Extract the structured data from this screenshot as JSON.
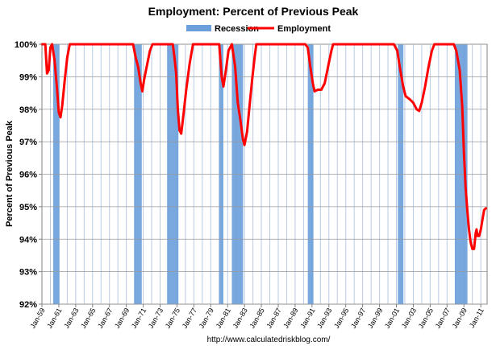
{
  "chart_data": {
    "type": "line",
    "title": "Employment: Percent of Previous Peak",
    "ylabel": "Percent of Previous Peak",
    "xlabel": "",
    "source": "http://www.calculatedriskblog.com/",
    "ylim": [
      92,
      100
    ],
    "xlim": [
      1959.0,
      2011.75
    ],
    "grid": true,
    "legend_position": "top-center",
    "y_ticks": [
      {
        "v": 92,
        "label": "92%"
      },
      {
        "v": 93,
        "label": "93%"
      },
      {
        "v": 94,
        "label": "94%"
      },
      {
        "v": 95,
        "label": "95%"
      },
      {
        "v": 96,
        "label": "96%"
      },
      {
        "v": 97,
        "label": "97%"
      },
      {
        "v": 98,
        "label": "98%"
      },
      {
        "v": 99,
        "label": "99%"
      },
      {
        "v": 100,
        "label": "100%"
      }
    ],
    "x_ticks": [
      "Jan-59",
      "Jan-61",
      "Jan-63",
      "Jan-65",
      "Jan-67",
      "Jan-69",
      "Jan-71",
      "Jan-73",
      "Jan-75",
      "Jan-77",
      "Jan-79",
      "Jan-81",
      "Jan-83",
      "Jan-85",
      "Jan-87",
      "Jan-89",
      "Jan-91",
      "Jan-93",
      "Jan-95",
      "Jan-97",
      "Jan-99",
      "Jan-01",
      "Jan-03",
      "Jan-05",
      "Jan-07",
      "Jan-09",
      "Jan-11"
    ],
    "legend": [
      {
        "name": "Recession",
        "color": "#6a9fdc"
      },
      {
        "name": "Employment",
        "color": "#ff0000"
      }
    ],
    "recessions": [
      [
        1960.33,
        1961.08
      ],
      [
        1969.92,
        1970.83
      ],
      [
        1973.83,
        1975.17
      ],
      [
        1980.0,
        1980.5
      ],
      [
        1981.5,
        1982.83
      ],
      [
        1990.5,
        1991.17
      ],
      [
        2001.17,
        2001.83
      ],
      [
        2007.92,
        2009.42
      ]
    ],
    "series": [
      {
        "name": "Employment",
        "color": "#ff0000",
        "points": [
          [
            1959.0,
            100
          ],
          [
            1959.4,
            100
          ],
          [
            1959.6,
            99.1
          ],
          [
            1959.8,
            99.2
          ],
          [
            1960.0,
            99.9
          ],
          [
            1960.2,
            100
          ],
          [
            1960.5,
            99.5
          ],
          [
            1960.8,
            98.6
          ],
          [
            1961.0,
            97.9
          ],
          [
            1961.2,
            97.75
          ],
          [
            1961.4,
            98.1
          ],
          [
            1961.7,
            98.9
          ],
          [
            1962.0,
            99.6
          ],
          [
            1962.3,
            100
          ],
          [
            1969.8,
            100
          ],
          [
            1970.1,
            99.6
          ],
          [
            1970.4,
            99.3
          ],
          [
            1970.7,
            98.8
          ],
          [
            1970.9,
            98.55
          ],
          [
            1971.1,
            98.9
          ],
          [
            1971.4,
            99.3
          ],
          [
            1971.8,
            99.8
          ],
          [
            1972.1,
            100
          ],
          [
            1974.5,
            100
          ],
          [
            1974.7,
            99.6
          ],
          [
            1974.9,
            99.1
          ],
          [
            1975.1,
            98.0
          ],
          [
            1975.3,
            97.35
          ],
          [
            1975.5,
            97.25
          ],
          [
            1975.8,
            97.9
          ],
          [
            1976.1,
            98.6
          ],
          [
            1976.5,
            99.4
          ],
          [
            1976.9,
            100
          ],
          [
            1980.0,
            100
          ],
          [
            1980.3,
            99.0
          ],
          [
            1980.5,
            98.7
          ],
          [
            1980.8,
            99.2
          ],
          [
            1981.1,
            99.8
          ],
          [
            1981.5,
            100
          ],
          [
            1981.9,
            99.3
          ],
          [
            1982.2,
            98.2
          ],
          [
            1982.5,
            97.7
          ],
          [
            1982.8,
            97.1
          ],
          [
            1983.0,
            96.9
          ],
          [
            1983.3,
            97.3
          ],
          [
            1983.6,
            98.1
          ],
          [
            1983.9,
            98.9
          ],
          [
            1984.2,
            99.6
          ],
          [
            1984.4,
            100
          ],
          [
            1990.2,
            100
          ],
          [
            1990.5,
            99.9
          ],
          [
            1990.8,
            99.3
          ],
          [
            1991.1,
            98.8
          ],
          [
            1991.3,
            98.55
          ],
          [
            1991.7,
            98.6
          ],
          [
            1992.1,
            98.6
          ],
          [
            1992.5,
            98.8
          ],
          [
            1992.9,
            99.3
          ],
          [
            1993.3,
            99.8
          ],
          [
            1993.5,
            100
          ],
          [
            2000.7,
            100
          ],
          [
            2001.1,
            99.8
          ],
          [
            2001.4,
            99.3
          ],
          [
            2001.8,
            98.7
          ],
          [
            2002.1,
            98.4
          ],
          [
            2002.6,
            98.3
          ],
          [
            2003.0,
            98.2
          ],
          [
            2003.4,
            98.0
          ],
          [
            2003.7,
            97.95
          ],
          [
            2004.0,
            98.2
          ],
          [
            2004.4,
            98.7
          ],
          [
            2004.8,
            99.3
          ],
          [
            2005.2,
            99.8
          ],
          [
            2005.5,
            100
          ],
          [
            2007.8,
            100
          ],
          [
            2008.1,
            99.8
          ],
          [
            2008.5,
            99.2
          ],
          [
            2008.8,
            98.1
          ],
          [
            2009.0,
            96.7
          ],
          [
            2009.2,
            95.6
          ],
          [
            2009.4,
            94.9
          ],
          [
            2009.6,
            94.3
          ],
          [
            2009.8,
            93.9
          ],
          [
            2010.0,
            93.7
          ],
          [
            2010.2,
            93.7
          ],
          [
            2010.4,
            94.2
          ],
          [
            2010.5,
            94.3
          ],
          [
            2010.6,
            94.1
          ],
          [
            2010.8,
            94.1
          ],
          [
            2011.0,
            94.3
          ],
          [
            2011.2,
            94.6
          ],
          [
            2011.4,
            94.9
          ],
          [
            2011.6,
            94.95
          ]
        ]
      }
    ]
  }
}
